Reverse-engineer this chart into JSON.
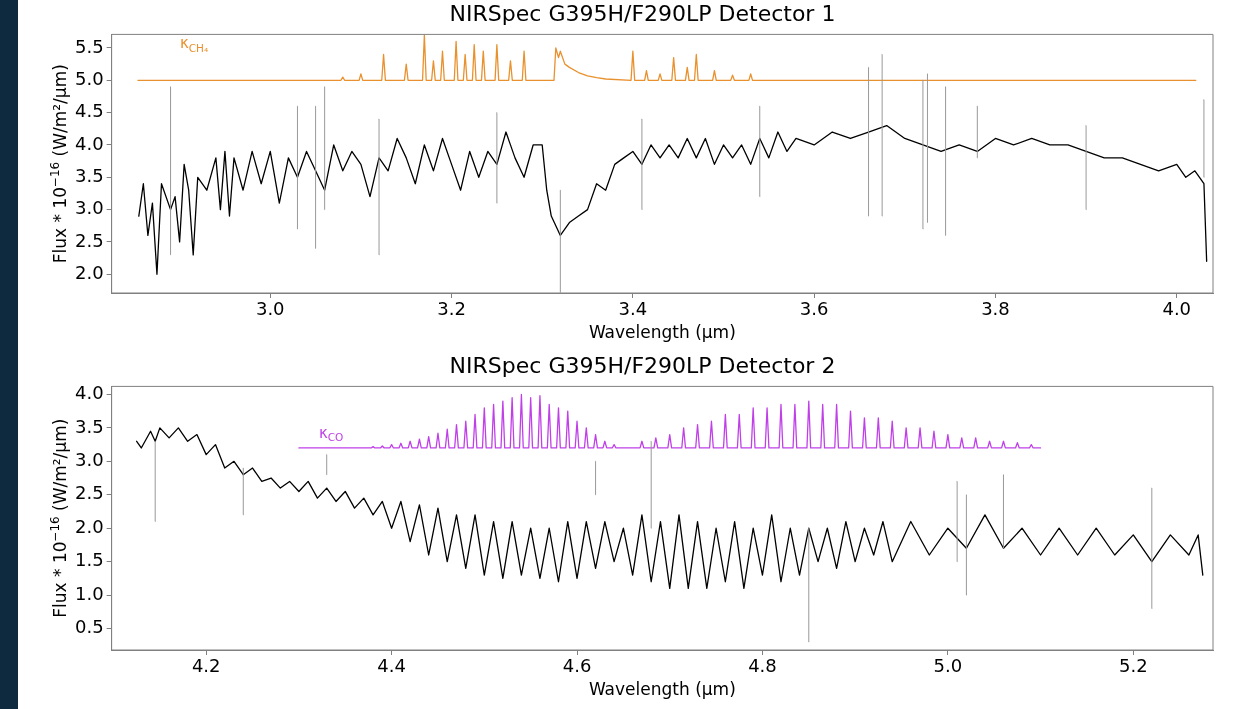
{
  "chart_data": [
    {
      "type": "line",
      "title": "NIRSpec G395H/F290LP Detector 1",
      "xlabel": "Wavelength (μm)",
      "ylabel": "Flux * 10$^{−16}$ (W/m²/μm)",
      "xlim": [
        2.825,
        4.04
      ],
      "xticks": [
        {
          "value": 3,
          "label": "3.0"
        },
        {
          "value": 3.2,
          "label": "3.2"
        },
        {
          "value": 3.4,
          "label": "3.4"
        },
        {
          "value": 3.6,
          "label": "3.6"
        },
        {
          "value": 3.8,
          "label": "3.8"
        },
        {
          "value": 4,
          "label": "4.0"
        }
      ],
      "ylim": [
        1.71,
        5.71
      ],
      "yticks": [
        {
          "value": 2,
          "label": "2.0"
        },
        {
          "value": 2.5,
          "label": "2.5"
        },
        {
          "value": 3,
          "label": "3.0"
        },
        {
          "value": 3.5,
          "label": "3.5"
        },
        {
          "value": 4,
          "label": "4.0"
        },
        {
          "value": 4.5,
          "label": "4.5"
        },
        {
          "value": 5,
          "label": "5.0"
        },
        {
          "value": 5.5,
          "label": "5.5"
        }
      ],
      "grid": false,
      "legend": false,
      "marker": "none",
      "line_style": "solid",
      "series": [
        {
          "color": "#999999",
          "x": [
            2.89,
            2.89,
            null,
            3.03,
            3.03,
            null,
            3.05,
            3.05,
            null,
            3.06,
            3.06,
            null,
            3.12,
            3.12,
            null,
            3.25,
            3.25,
            null,
            3.32,
            3.32,
            null,
            3.41,
            3.41,
            null,
            3.54,
            3.54,
            null,
            3.66,
            3.66,
            null,
            3.675,
            3.675,
            null,
            3.72,
            3.72,
            null,
            3.725,
            3.725,
            null,
            3.745,
            3.745,
            null,
            3.78,
            3.78,
            null,
            3.9,
            3.9,
            null,
            4.03,
            4.03
          ],
          "values": [
            2.3,
            4.9,
            null,
            2.7,
            4.6,
            null,
            2.4,
            4.6,
            null,
            3.0,
            4.9,
            null,
            2.3,
            4.4,
            null,
            3.1,
            4.5,
            null,
            1.72,
            3.3,
            null,
            3.0,
            4.4,
            null,
            3.2,
            4.6,
            null,
            2.9,
            5.2,
            null,
            2.9,
            5.4,
            null,
            2.7,
            5.0,
            null,
            2.8,
            5.1,
            null,
            2.6,
            4.9,
            null,
            3.8,
            4.6,
            null,
            3.0,
            4.3,
            null,
            3.5,
            4.7
          ]
        },
        {
          "color": "#000000",
          "x": [
            2.855,
            2.86,
            2.865,
            2.87,
            2.875,
            2.88,
            2.89,
            2.895,
            2.9,
            2.905,
            2.91,
            2.915,
            2.92,
            2.93,
            2.94,
            2.945,
            2.95,
            2.955,
            2.96,
            2.97,
            2.98,
            2.99,
            3.0,
            3.01,
            3.02,
            3.03,
            3.04,
            3.05,
            3.06,
            3.07,
            3.08,
            3.09,
            3.1,
            3.11,
            3.12,
            3.13,
            3.14,
            3.15,
            3.16,
            3.17,
            3.18,
            3.19,
            3.2,
            3.21,
            3.22,
            3.23,
            3.24,
            3.25,
            3.26,
            3.27,
            3.28,
            3.29,
            3.3,
            3.305,
            3.31,
            3.32,
            3.33,
            3.34,
            3.35,
            3.36,
            3.37,
            3.38,
            3.39,
            3.4,
            3.41,
            3.42,
            3.43,
            3.44,
            3.45,
            3.46,
            3.47,
            3.48,
            3.49,
            3.5,
            3.51,
            3.52,
            3.53,
            3.54,
            3.55,
            3.56,
            3.57,
            3.58,
            3.6,
            3.62,
            3.64,
            3.66,
            3.68,
            3.7,
            3.72,
            3.74,
            3.76,
            3.78,
            3.8,
            3.82,
            3.84,
            3.86,
            3.88,
            3.9,
            3.92,
            3.94,
            3.96,
            3.98,
            4.0,
            4.01,
            4.02,
            4.03,
            4.033
          ],
          "values": [
            2.9,
            3.4,
            2.6,
            3.1,
            2.0,
            3.4,
            3.0,
            3.2,
            2.5,
            3.7,
            3.3,
            2.3,
            3.5,
            3.3,
            3.8,
            3.0,
            3.9,
            2.9,
            3.8,
            3.3,
            3.9,
            3.4,
            3.9,
            3.1,
            3.8,
            3.5,
            3.9,
            3.6,
            3.3,
            4.0,
            3.6,
            3.9,
            3.7,
            3.2,
            3.8,
            3.6,
            4.1,
            3.8,
            3.4,
            4.0,
            3.6,
            4.1,
            3.7,
            3.3,
            3.9,
            3.5,
            3.9,
            3.7,
            4.2,
            3.8,
            3.5,
            4.0,
            4.0,
            3.3,
            2.9,
            2.6,
            2.8,
            2.9,
            3.0,
            3.4,
            3.3,
            3.7,
            3.8,
            3.9,
            3.7,
            4.0,
            3.8,
            4.0,
            3.8,
            4.1,
            3.8,
            4.1,
            3.7,
            4.0,
            3.8,
            4.0,
            3.7,
            4.1,
            3.8,
            4.2,
            3.9,
            4.1,
            4.0,
            4.2,
            4.1,
            4.2,
            4.3,
            4.1,
            4.0,
            3.9,
            4.0,
            3.9,
            4.1,
            4.0,
            4.1,
            4.0,
            4.0,
            3.9,
            3.8,
            3.8,
            3.7,
            3.6,
            3.7,
            3.5,
            3.6,
            3.4,
            2.2
          ]
        },
        {
          "name": "κ$_{CH₄}$",
          "color": "#e8912e",
          "x": [
            2.854,
            3.078,
            3.08,
            3.082,
            3.098,
            3.1,
            3.102,
            3.123,
            3.125,
            3.127,
            3.148,
            3.15,
            3.152,
            3.168,
            3.17,
            3.172,
            3.178,
            3.18,
            3.182,
            3.188,
            3.19,
            3.192,
            3.203,
            3.205,
            3.207,
            3.213,
            3.215,
            3.217,
            3.223,
            3.225,
            3.227,
            3.233,
            3.235,
            3.237,
            3.248,
            3.25,
            3.252,
            3.263,
            3.265,
            3.267,
            3.278,
            3.28,
            3.282,
            3.313,
            3.315,
            3.318,
            3.32,
            3.325,
            3.33,
            3.34,
            3.35,
            3.36,
            3.37,
            3.398,
            3.4,
            3.402,
            3.413,
            3.415,
            3.417,
            3.428,
            3.43,
            3.432,
            3.443,
            3.445,
            3.447,
            3.458,
            3.46,
            3.462,
            3.468,
            3.47,
            3.472,
            3.488,
            3.49,
            3.492,
            3.508,
            3.51,
            3.512,
            3.528,
            3.53,
            3.532,
            4.021
          ],
          "values": [
            5.0,
            5.0,
            5.05,
            5.0,
            5.0,
            5.1,
            5.0,
            5.0,
            5.4,
            5.0,
            5.0,
            5.25,
            5.0,
            5.0,
            5.7,
            5.0,
            5.0,
            5.3,
            5.0,
            5.0,
            5.45,
            5.0,
            5.0,
            5.6,
            5.0,
            5.0,
            5.4,
            5.0,
            5.0,
            5.55,
            5.0,
            5.0,
            5.45,
            5.0,
            5.0,
            5.55,
            5.0,
            5.0,
            5.3,
            5.0,
            5.0,
            5.45,
            5.0,
            5.0,
            5.5,
            5.35,
            5.45,
            5.25,
            5.2,
            5.12,
            5.07,
            5.04,
            5.02,
            5.0,
            5.45,
            5.0,
            5.0,
            5.15,
            5.0,
            5.0,
            5.1,
            5.0,
            5.0,
            5.35,
            5.0,
            5.0,
            5.2,
            5.0,
            5.0,
            5.4,
            5.0,
            5.0,
            5.15,
            5.0,
            5.0,
            5.08,
            5.0,
            5.0,
            5.1,
            5.0,
            5.0
          ]
        }
      ]
    },
    {
      "type": "line",
      "title": "NIRSpec G395H/F290LP Detector 2",
      "xlabel": "Wavelength (μm)",
      "ylabel": "Flux * 10$^{−16}$ (W/m²/μm)",
      "xlim": [
        4.098,
        5.286
      ],
      "xticks": [
        {
          "value": 4.2,
          "label": "4.2"
        },
        {
          "value": 4.4,
          "label": "4.4"
        },
        {
          "value": 4.6,
          "label": "4.6"
        },
        {
          "value": 4.8,
          "label": "4.8"
        },
        {
          "value": 5,
          "label": "5.0"
        },
        {
          "value": 5.2,
          "label": "5.2"
        }
      ],
      "ylim": [
        0.18,
        4.12
      ],
      "yticks": [
        {
          "value": 0.5,
          "label": "0.5"
        },
        {
          "value": 1,
          "label": "1.0"
        },
        {
          "value": 1.5,
          "label": "1.5"
        },
        {
          "value": 2,
          "label": "2.0"
        },
        {
          "value": 2.5,
          "label": "2.5"
        },
        {
          "value": 3,
          "label": "3.0"
        },
        {
          "value": 3.5,
          "label": "3.5"
        },
        {
          "value": 4,
          "label": "4.0"
        }
      ],
      "grid": false,
      "legend": false,
      "marker": "none",
      "line_style": "solid",
      "series": [
        {
          "color": "#999999",
          "x": [
            4.145,
            4.145,
            null,
            4.24,
            4.24,
            null,
            4.33,
            4.33,
            null,
            4.62,
            4.62,
            null,
            4.68,
            4.68,
            null,
            4.85,
            4.85,
            null,
            5.01,
            5.01,
            null,
            5.02,
            5.02,
            null,
            5.06,
            5.06,
            null,
            5.22,
            5.22
          ],
          "values": [
            2.1,
            3.3,
            null,
            2.2,
            2.9,
            null,
            2.8,
            3.1,
            null,
            2.5,
            3.0,
            null,
            2.0,
            3.3,
            null,
            0.3,
            2.0,
            null,
            1.5,
            2.7,
            null,
            1.0,
            2.5,
            null,
            1.7,
            2.8,
            null,
            0.8,
            2.6
          ]
        },
        {
          "color": "#000000",
          "x": [
            4.125,
            4.13,
            4.14,
            4.145,
            4.15,
            4.16,
            4.17,
            4.18,
            4.19,
            4.2,
            4.21,
            4.22,
            4.23,
            4.24,
            4.25,
            4.26,
            4.27,
            4.28,
            4.29,
            4.3,
            4.31,
            4.32,
            4.33,
            4.34,
            4.35,
            4.36,
            4.37,
            4.38,
            4.39,
            4.4,
            4.41,
            4.42,
            4.43,
            4.44,
            4.45,
            4.46,
            4.47,
            4.48,
            4.49,
            4.5,
            4.51,
            4.52,
            4.53,
            4.54,
            4.55,
            4.56,
            4.57,
            4.58,
            4.59,
            4.6,
            4.61,
            4.62,
            4.63,
            4.64,
            4.65,
            4.66,
            4.67,
            4.68,
            4.69,
            4.7,
            4.71,
            4.72,
            4.73,
            4.74,
            4.75,
            4.76,
            4.77,
            4.78,
            4.79,
            4.8,
            4.81,
            4.82,
            4.83,
            4.84,
            4.85,
            4.86,
            4.87,
            4.88,
            4.89,
            4.9,
            4.91,
            4.92,
            4.93,
            4.94,
            4.96,
            4.98,
            5.0,
            5.02,
            5.04,
            5.06,
            5.08,
            5.1,
            5.12,
            5.14,
            5.16,
            5.18,
            5.2,
            5.22,
            5.24,
            5.26,
            5.27,
            5.275
          ],
          "values": [
            3.3,
            3.2,
            3.45,
            3.3,
            3.5,
            3.35,
            3.5,
            3.3,
            3.4,
            3.1,
            3.25,
            2.9,
            3.0,
            2.8,
            2.9,
            2.7,
            2.75,
            2.6,
            2.7,
            2.55,
            2.7,
            2.45,
            2.6,
            2.4,
            2.55,
            2.3,
            2.45,
            2.2,
            2.4,
            2.0,
            2.4,
            1.8,
            2.35,
            1.6,
            2.3,
            1.5,
            2.2,
            1.4,
            2.2,
            1.3,
            2.1,
            1.25,
            2.1,
            1.3,
            2.0,
            1.25,
            2.0,
            1.2,
            2.1,
            1.25,
            2.1,
            1.4,
            2.1,
            1.5,
            2.0,
            1.3,
            2.2,
            1.2,
            2.1,
            1.1,
            2.2,
            1.1,
            2.1,
            1.1,
            2.0,
            1.2,
            2.1,
            1.1,
            2.0,
            1.3,
            2.2,
            1.2,
            2.0,
            1.3,
            2.0,
            1.5,
            2.0,
            1.4,
            2.1,
            1.5,
            2.0,
            1.6,
            2.1,
            1.5,
            2.1,
            1.6,
            2.0,
            1.7,
            2.2,
            1.7,
            2.0,
            1.6,
            2.0,
            1.6,
            2.0,
            1.6,
            1.9,
            1.5,
            1.9,
            1.6,
            1.9,
            1.3
          ]
        },
        {
          "name": "κ$_{CO}$",
          "color": "#c040e8",
          "x": [
            4.3,
            4.378,
            4.38,
            4.382,
            4.388,
            4.39,
            4.392,
            4.398,
            4.4,
            4.402,
            4.408,
            4.41,
            4.412,
            4.418,
            4.42,
            4.422,
            4.428,
            4.43,
            4.432,
            4.438,
            4.44,
            4.442,
            4.448,
            4.45,
            4.452,
            4.458,
            4.46,
            4.462,
            4.468,
            4.47,
            4.472,
            4.478,
            4.48,
            4.482,
            4.488,
            4.49,
            4.492,
            4.498,
            4.5,
            4.502,
            4.508,
            4.51,
            4.512,
            4.518,
            4.52,
            4.522,
            4.528,
            4.53,
            4.532,
            4.538,
            4.54,
            4.542,
            4.548,
            4.55,
            4.552,
            4.558,
            4.56,
            4.562,
            4.568,
            4.57,
            4.572,
            4.578,
            4.58,
            4.582,
            4.588,
            4.59,
            4.592,
            4.598,
            4.6,
            4.602,
            4.608,
            4.61,
            4.612,
            4.618,
            4.62,
            4.622,
            4.628,
            4.63,
            4.632,
            4.638,
            4.64,
            4.642,
            4.668,
            4.67,
            4.672,
            4.683,
            4.685,
            4.687,
            4.698,
            4.7,
            4.702,
            4.713,
            4.715,
            4.717,
            4.728,
            4.73,
            4.732,
            4.743,
            4.745,
            4.747,
            4.758,
            4.76,
            4.762,
            4.773,
            4.775,
            4.777,
            4.788,
            4.79,
            4.792,
            4.803,
            4.805,
            4.807,
            4.818,
            4.82,
            4.822,
            4.833,
            4.835,
            4.837,
            4.848,
            4.85,
            4.852,
            4.863,
            4.865,
            4.867,
            4.878,
            4.88,
            4.882,
            4.893,
            4.895,
            4.897,
            4.908,
            4.91,
            4.912,
            4.923,
            4.925,
            4.927,
            4.938,
            4.94,
            4.942,
            4.953,
            4.955,
            4.957,
            4.968,
            4.97,
            4.972,
            4.983,
            4.985,
            4.987,
            4.998,
            5.0,
            5.002,
            5.013,
            5.015,
            5.017,
            5.028,
            5.03,
            5.032,
            5.043,
            5.045,
            5.047,
            5.058,
            5.06,
            5.062,
            5.073,
            5.075,
            5.077,
            5.088,
            5.09,
            5.092,
            5.1
          ],
          "values": [
            3.2,
            3.2,
            3.22,
            3.2,
            3.2,
            3.23,
            3.2,
            3.2,
            3.25,
            3.2,
            3.2,
            3.27,
            3.2,
            3.2,
            3.3,
            3.2,
            3.2,
            3.33,
            3.2,
            3.2,
            3.37,
            3.2,
            3.2,
            3.42,
            3.2,
            3.2,
            3.48,
            3.2,
            3.2,
            3.55,
            3.2,
            3.2,
            3.6,
            3.2,
            3.2,
            3.7,
            3.2,
            3.2,
            3.8,
            3.2,
            3.2,
            3.85,
            3.2,
            3.2,
            3.9,
            3.2,
            3.2,
            3.95,
            3.2,
            3.2,
            4.0,
            3.2,
            3.2,
            3.95,
            3.2,
            3.2,
            3.98,
            3.2,
            3.2,
            3.85,
            3.2,
            3.2,
            3.8,
            3.2,
            3.2,
            3.75,
            3.2,
            3.2,
            3.6,
            3.2,
            3.2,
            3.5,
            3.2,
            3.2,
            3.4,
            3.2,
            3.2,
            3.3,
            3.2,
            3.2,
            3.25,
            3.2,
            3.2,
            3.3,
            3.2,
            3.2,
            3.35,
            3.2,
            3.2,
            3.4,
            3.2,
            3.2,
            3.5,
            3.2,
            3.2,
            3.55,
            3.2,
            3.2,
            3.6,
            3.2,
            3.2,
            3.7,
            3.2,
            3.2,
            3.7,
            3.2,
            3.2,
            3.8,
            3.2,
            3.2,
            3.8,
            3.2,
            3.2,
            3.85,
            3.2,
            3.2,
            3.85,
            3.2,
            3.2,
            3.9,
            3.2,
            3.2,
            3.85,
            3.2,
            3.2,
            3.85,
            3.2,
            3.2,
            3.75,
            3.2,
            3.2,
            3.65,
            3.2,
            3.2,
            3.65,
            3.2,
            3.2,
            3.6,
            3.2,
            3.2,
            3.5,
            3.2,
            3.2,
            3.5,
            3.2,
            3.2,
            3.45,
            3.2,
            3.2,
            3.4,
            3.2,
            3.2,
            3.35,
            3.2,
            3.2,
            3.35,
            3.2,
            3.2,
            3.3,
            3.2,
            3.2,
            3.3,
            3.2,
            3.2,
            3.28,
            3.2,
            3.2,
            3.25,
            3.2,
            3.2
          ]
        }
      ]
    }
  ]
}
